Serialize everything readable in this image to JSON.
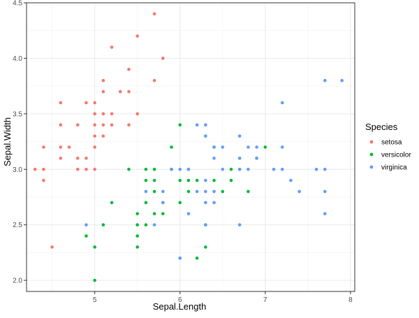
{
  "chart_data": {
    "type": "scatter",
    "title": "",
    "xlabel": "Sepal.Length",
    "ylabel": "Sepal.Width",
    "xlim": [
      4.2,
      8.05
    ],
    "ylim": [
      1.9,
      4.5
    ],
    "x_ticks": [
      5,
      6,
      7,
      8
    ],
    "y_ticks": [
      2.0,
      2.5,
      3.0,
      3.5,
      4.0,
      4.5
    ],
    "x_tick_labels": [
      "5",
      "6",
      "7",
      "8"
    ],
    "y_tick_labels": [
      "2.0",
      "2.5",
      "3.0",
      "3.5",
      "4.0",
      "4.5"
    ],
    "grid": true,
    "legend": {
      "title": "Species",
      "placement": "right"
    },
    "colors": {
      "setosa": "#F8766D",
      "versicolor": "#00BA38",
      "virginica": "#619CFF"
    },
    "series": [
      {
        "name": "setosa",
        "points": [
          [
            4.3,
            3.0
          ],
          [
            4.4,
            2.9
          ],
          [
            4.4,
            3.0
          ],
          [
            4.4,
            3.2
          ],
          [
            4.5,
            2.3
          ],
          [
            4.6,
            3.1
          ],
          [
            4.6,
            3.2
          ],
          [
            4.6,
            3.4
          ],
          [
            4.6,
            3.6
          ],
          [
            4.7,
            3.2
          ],
          [
            4.8,
            3.0
          ],
          [
            4.8,
            3.1
          ],
          [
            4.8,
            3.4
          ],
          [
            4.9,
            3.0
          ],
          [
            4.9,
            3.1
          ],
          [
            4.9,
            3.6
          ],
          [
            5.0,
            3.0
          ],
          [
            5.0,
            3.2
          ],
          [
            5.0,
            3.3
          ],
          [
            5.0,
            3.4
          ],
          [
            5.0,
            3.5
          ],
          [
            5.0,
            3.6
          ],
          [
            5.1,
            3.3
          ],
          [
            5.1,
            3.4
          ],
          [
            5.1,
            3.5
          ],
          [
            5.1,
            3.7
          ],
          [
            5.1,
            3.8
          ],
          [
            5.2,
            3.4
          ],
          [
            5.2,
            3.5
          ],
          [
            5.2,
            4.1
          ],
          [
            5.3,
            3.7
          ],
          [
            5.4,
            3.4
          ],
          [
            5.4,
            3.7
          ],
          [
            5.4,
            3.9
          ],
          [
            5.5,
            3.5
          ],
          [
            5.5,
            4.2
          ],
          [
            5.7,
            3.8
          ],
          [
            5.7,
            4.4
          ],
          [
            5.8,
            4.0
          ]
        ]
      },
      {
        "name": "versicolor",
        "points": [
          [
            4.9,
            2.4
          ],
          [
            5.0,
            2.0
          ],
          [
            5.0,
            2.3
          ],
          [
            5.1,
            2.5
          ],
          [
            5.2,
            2.7
          ],
          [
            5.4,
            3.0
          ],
          [
            5.5,
            2.3
          ],
          [
            5.5,
            2.4
          ],
          [
            5.5,
            2.5
          ],
          [
            5.5,
            2.6
          ],
          [
            5.6,
            2.5
          ],
          [
            5.6,
            2.7
          ],
          [
            5.6,
            2.9
          ],
          [
            5.6,
            3.0
          ],
          [
            5.7,
            2.6
          ],
          [
            5.7,
            2.8
          ],
          [
            5.7,
            2.9
          ],
          [
            5.7,
            3.0
          ],
          [
            5.8,
            2.6
          ],
          [
            5.8,
            2.7
          ],
          [
            5.9,
            3.0
          ],
          [
            5.9,
            3.2
          ],
          [
            6.0,
            2.2
          ],
          [
            6.0,
            2.7
          ],
          [
            6.0,
            2.9
          ],
          [
            6.0,
            3.4
          ],
          [
            6.1,
            2.8
          ],
          [
            6.1,
            2.9
          ],
          [
            6.1,
            3.0
          ],
          [
            6.2,
            2.2
          ],
          [
            6.2,
            2.9
          ],
          [
            6.3,
            2.3
          ],
          [
            6.3,
            2.5
          ],
          [
            6.3,
            3.3
          ],
          [
            6.4,
            2.9
          ],
          [
            6.4,
            3.2
          ],
          [
            6.5,
            2.8
          ],
          [
            6.6,
            2.9
          ],
          [
            6.6,
            3.0
          ],
          [
            6.7,
            3.0
          ],
          [
            6.7,
            3.1
          ],
          [
            6.8,
            2.8
          ],
          [
            6.9,
            3.1
          ],
          [
            7.0,
            3.2
          ]
        ]
      },
      {
        "name": "virginica",
        "points": [
          [
            4.9,
            2.5
          ],
          [
            5.6,
            2.8
          ],
          [
            5.7,
            2.5
          ],
          [
            5.8,
            2.7
          ],
          [
            5.8,
            2.8
          ],
          [
            5.9,
            3.0
          ],
          [
            6.0,
            2.2
          ],
          [
            6.0,
            3.0
          ],
          [
            6.1,
            2.6
          ],
          [
            6.1,
            3.0
          ],
          [
            6.2,
            2.8
          ],
          [
            6.2,
            3.4
          ],
          [
            6.3,
            2.5
          ],
          [
            6.3,
            2.7
          ],
          [
            6.3,
            2.8
          ],
          [
            6.3,
            2.9
          ],
          [
            6.3,
            3.3
          ],
          [
            6.3,
            3.4
          ],
          [
            6.4,
            2.7
          ],
          [
            6.4,
            2.8
          ],
          [
            6.4,
            3.1
          ],
          [
            6.4,
            3.2
          ],
          [
            6.5,
            3.0
          ],
          [
            6.5,
            3.2
          ],
          [
            6.7,
            2.5
          ],
          [
            6.7,
            3.0
          ],
          [
            6.7,
            3.1
          ],
          [
            6.7,
            3.3
          ],
          [
            6.8,
            3.0
          ],
          [
            6.8,
            3.2
          ],
          [
            6.9,
            3.1
          ],
          [
            6.9,
            3.2
          ],
          [
            7.1,
            3.0
          ],
          [
            7.2,
            3.0
          ],
          [
            7.2,
            3.2
          ],
          [
            7.2,
            3.6
          ],
          [
            7.3,
            2.9
          ],
          [
            7.4,
            2.8
          ],
          [
            7.6,
            3.0
          ],
          [
            7.7,
            2.6
          ],
          [
            7.7,
            2.8
          ],
          [
            7.7,
            3.0
          ],
          [
            7.7,
            3.8
          ],
          [
            7.9,
            3.8
          ]
        ]
      }
    ]
  }
}
